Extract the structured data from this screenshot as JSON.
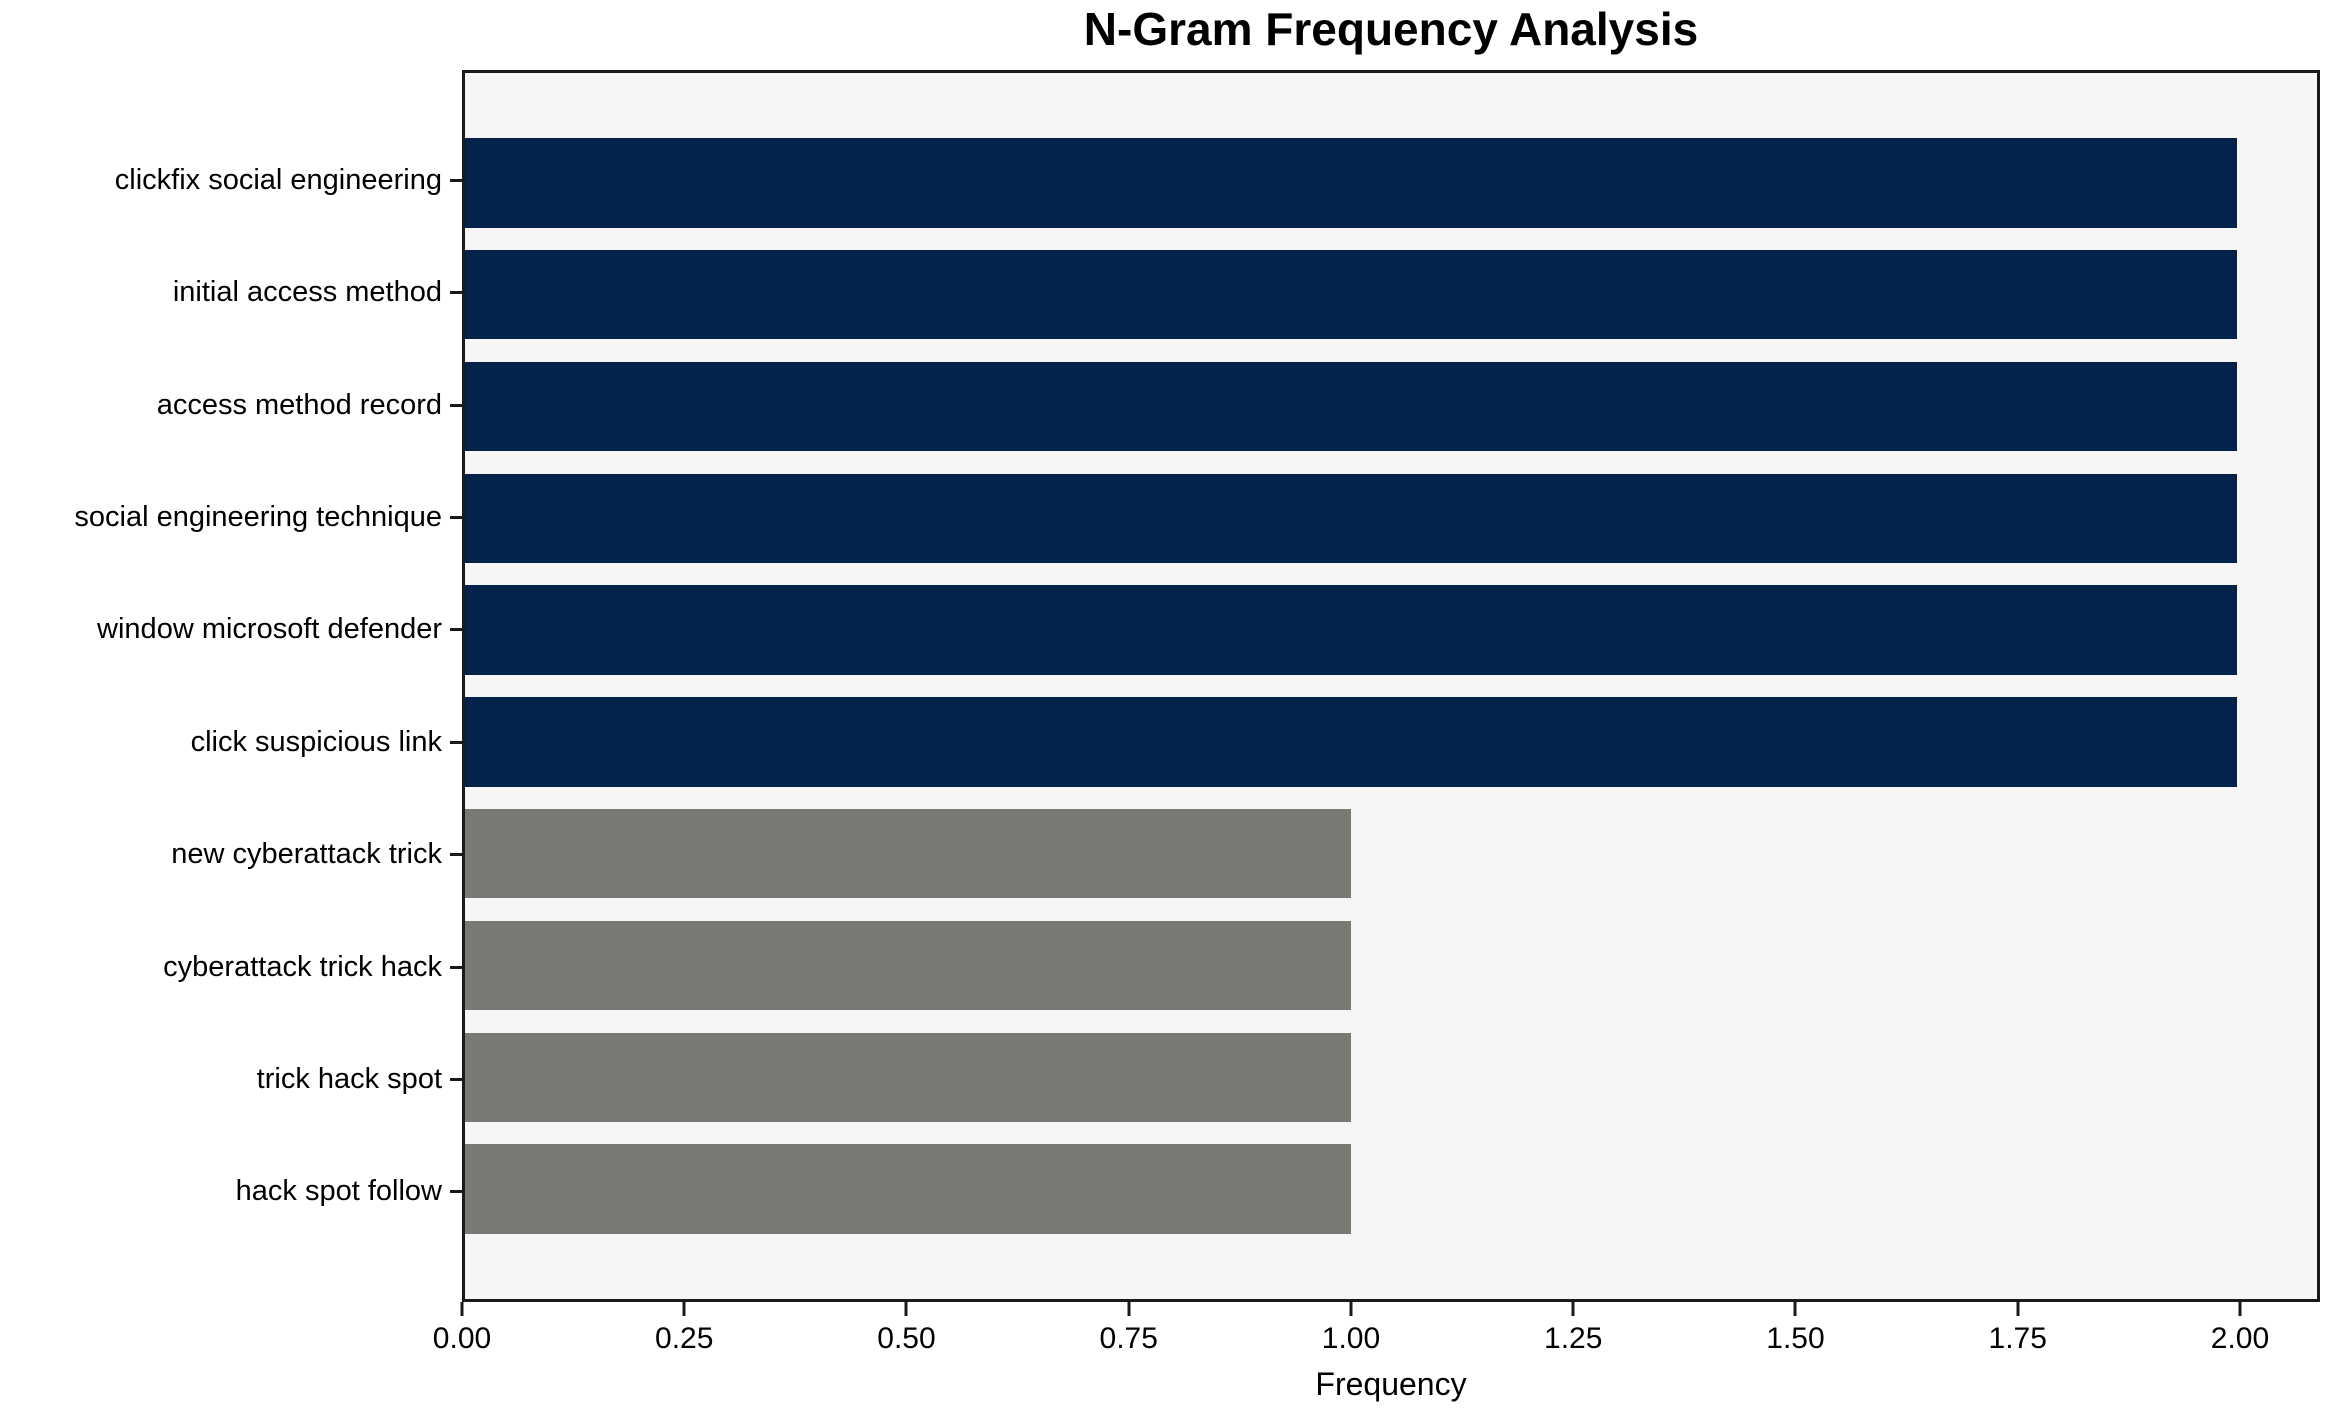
{
  "chart_data": {
    "type": "bar",
    "orientation": "horizontal",
    "title": "N-Gram Frequency Analysis",
    "xlabel": "Frequency",
    "ylabel": "",
    "categories": [
      "clickfix social engineering",
      "initial access method",
      "access method record",
      "social engineering technique",
      "window microsoft defender",
      "click suspicious link",
      "new cyberattack trick",
      "cyberattack trick hack",
      "trick hack spot",
      "hack spot follow"
    ],
    "values": [
      2,
      2,
      2,
      2,
      2,
      2,
      1,
      1,
      1,
      1
    ],
    "bar_colors": [
      "#04234a",
      "#04234a",
      "#04234a",
      "#04234a",
      "#04234a",
      "#04234a",
      "#7a7974",
      "#7a7974",
      "#7a7974",
      "#7a7974"
    ],
    "x_ticks": [
      "0.00",
      "0.25",
      "0.50",
      "0.75",
      "1.00",
      "1.25",
      "1.50",
      "1.75",
      "2.00"
    ],
    "xlim": [
      0,
      2.09
    ],
    "grid": false,
    "legend_position": "none",
    "plot_background": "#f6f6f6",
    "figure_background": "#ffffff",
    "colors": {
      "high_frequency_bar": "#04234a",
      "low_frequency_bar": "#7a7974",
      "spine": "#1a1a1a",
      "text": "#000000"
    }
  }
}
